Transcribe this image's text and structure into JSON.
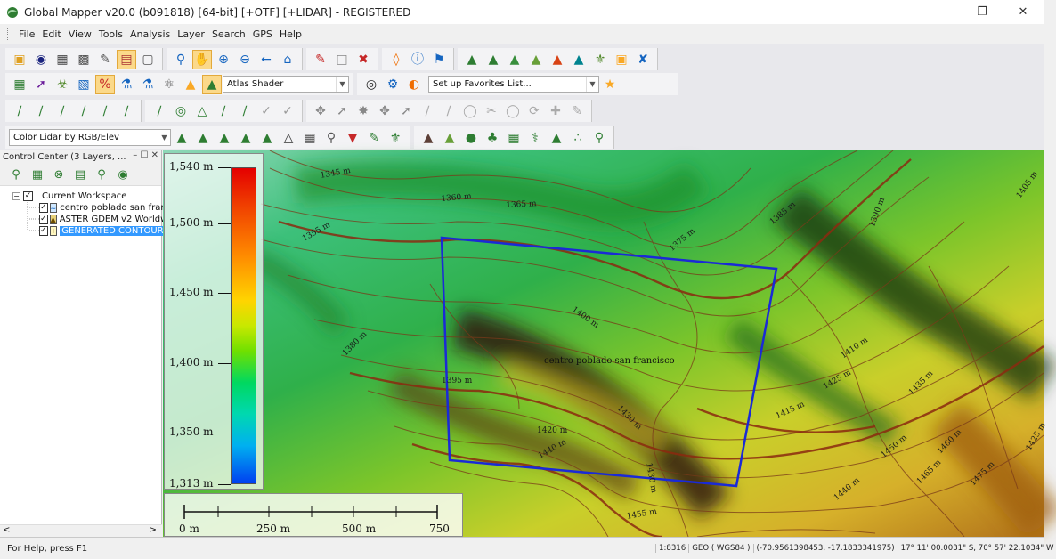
{
  "window": {
    "title": "Global Mapper v20.0 (b091818) [64-bit] [+OTF] [+LIDAR] - REGISTERED",
    "minimize": "–",
    "maximize": "❐",
    "close": "✕"
  },
  "menu": [
    "File",
    "Edit",
    "View",
    "Tools",
    "Analysis",
    "Layer",
    "Search",
    "GPS",
    "Help"
  ],
  "toolbar": {
    "shader_select": "Atlas Shader",
    "favorites_select": "Set up Favorites List...",
    "lidar_color_select": "Color Lidar by RGB/Elev"
  },
  "control_center": {
    "title": "Control Center (3 Layers, ...",
    "header_controls": "– ☐ ✕",
    "workspace": "Current Workspace",
    "layers": [
      {
        "label": "centro poblado san fran",
        "icon": "vector-layer-icon",
        "checked": true
      },
      {
        "label": "ASTER GDEM v2 Worldw",
        "icon": "elevation-layer-icon",
        "checked": true
      },
      {
        "label": "GENERATED CONTOURS",
        "icon": "contour-layer-icon",
        "checked": true
      }
    ],
    "scroll_left": "<",
    "scroll_right": ">"
  },
  "legend": {
    "labels": [
      "1,540 m",
      "1,500 m",
      "1,450 m",
      "1,400 m",
      "1,350 m",
      "1,313 m"
    ],
    "values": [
      1540,
      1500,
      1450,
      1400,
      1350,
      1313
    ],
    "range": [
      1313,
      1540
    ]
  },
  "scalebar": {
    "labels": [
      "0 m",
      "250 m",
      "500 m",
      "750 m"
    ]
  },
  "map": {
    "feature_label": "centro poblado san francisco",
    "contour_labels": [
      "1345 m",
      "1360 m",
      "1365 m",
      "1355 m",
      "1375 m",
      "1385 m",
      "1390 m",
      "1405 m",
      "1400 m",
      "1380 m",
      "1395 m",
      "1410 m",
      "1425 m",
      "1420 m",
      "1415 m",
      "1430 m",
      "1435 m",
      "1440 m",
      "1450 m",
      "1460 m",
      "1465 m",
      "1475 m",
      "1425 m",
      "1430 m",
      "1440 m",
      "1455 m"
    ],
    "boundary_color": "#1a2ad6",
    "contour_color": "#7a3a1a"
  },
  "status": {
    "help": "For Help, press F1",
    "scale": "1:8316",
    "projection": "GEO ( WGS84 )",
    "coordinates": "(-70.9561398453, -17.1833341975)",
    "dms": "17° 11' 00.0031\" S, 70° 57' 22.1034\" W"
  }
}
